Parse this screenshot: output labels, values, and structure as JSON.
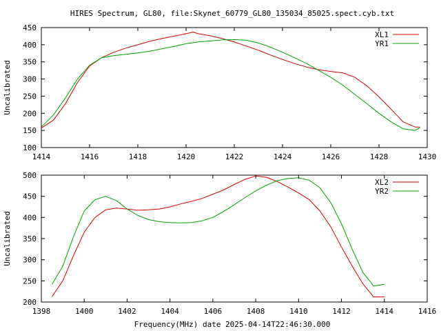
{
  "title": "HIRES Spectrum, GL80, file:Skynet_60779_GL80_135034_85025.spect.cyb.txt",
  "xlabel": "Frequency(MHz) date 2025-04-14T22:46:30.000",
  "chart_data": [
    {
      "type": "line",
      "title": "HIRES Spectrum, GL80, file:Skynet_60779_GL80_135034_85025.spect.cyb.txt",
      "xlabel": "",
      "ylabel": "Uncalibrated",
      "xlim": [
        1414,
        1430
      ],
      "ylim": [
        100,
        450
      ],
      "x_ticks": [
        "1414",
        "1416",
        "1418",
        "1420",
        "1422",
        "1424",
        "1426",
        "1428",
        "1430"
      ],
      "y_ticks": [
        "100",
        "150",
        "200",
        "250",
        "300",
        "350",
        "400",
        "450"
      ],
      "grid": false,
      "legend": "top-right",
      "series": [
        {
          "name": "XL1",
          "color": "#d00000",
          "x": [
            1414.0,
            1414.5,
            1415.0,
            1415.5,
            1416.0,
            1416.5,
            1417.0,
            1417.5,
            1418.0,
            1418.5,
            1419.0,
            1419.5,
            1420.0,
            1420.3,
            1420.5,
            1421.0,
            1421.5,
            1422.0,
            1422.5,
            1423.0,
            1423.5,
            1424.0,
            1424.5,
            1425.0,
            1425.5,
            1426.0,
            1426.5,
            1427.0,
            1427.5,
            1428.0,
            1428.5,
            1429.0,
            1429.5,
            1429.7
          ],
          "values": [
            157,
            180,
            228,
            290,
            338,
            362,
            378,
            390,
            400,
            410,
            418,
            425,
            432,
            437,
            432,
            426,
            418,
            408,
            396,
            384,
            370,
            357,
            345,
            335,
            327,
            322,
            318,
            305,
            280,
            248,
            212,
            175,
            160,
            160
          ]
        },
        {
          "name": "YR1",
          "color": "#00a000",
          "x": [
            1414.0,
            1414.5,
            1415.0,
            1415.5,
            1416.0,
            1416.5,
            1417.0,
            1417.5,
            1418.0,
            1418.5,
            1419.0,
            1419.5,
            1420.0,
            1420.5,
            1421.0,
            1421.5,
            1422.0,
            1422.5,
            1423.0,
            1423.5,
            1424.0,
            1424.5,
            1425.0,
            1425.5,
            1426.0,
            1426.5,
            1427.0,
            1427.5,
            1428.0,
            1428.5,
            1429.0,
            1429.5,
            1429.7
          ],
          "values": [
            160,
            195,
            245,
            300,
            340,
            362,
            368,
            372,
            376,
            381,
            388,
            395,
            403,
            408,
            411,
            414,
            415,
            413,
            405,
            393,
            378,
            362,
            345,
            325,
            305,
            282,
            255,
            228,
            200,
            175,
            155,
            150,
            158
          ]
        }
      ]
    },
    {
      "type": "line",
      "title": "",
      "xlabel": "Frequency(MHz) date 2025-04-14T22:46:30.000",
      "ylabel": "Uncalibrated",
      "xlim": [
        1398,
        1416
      ],
      "ylim": [
        200,
        500
      ],
      "x_ticks": [
        "1398",
        "1400",
        "1402",
        "1404",
        "1406",
        "1408",
        "1410",
        "1412",
        "1414",
        "1416"
      ],
      "y_ticks": [
        "200",
        "250",
        "300",
        "350",
        "400",
        "450",
        "500"
      ],
      "grid": false,
      "legend": "top-right",
      "series": [
        {
          "name": "XL2",
          "color": "#d00000",
          "x": [
            1398.5,
            1399.0,
            1399.5,
            1400.0,
            1400.5,
            1401.0,
            1401.5,
            1402.0,
            1402.5,
            1403.0,
            1403.5,
            1404.0,
            1404.5,
            1405.0,
            1405.5,
            1406.0,
            1406.5,
            1407.0,
            1407.5,
            1408.0,
            1408.5,
            1409.0,
            1409.5,
            1410.0,
            1410.5,
            1411.0,
            1411.5,
            1412.0,
            1412.5,
            1413.0,
            1413.5,
            1414.0
          ],
          "values": [
            213,
            250,
            310,
            365,
            400,
            418,
            422,
            420,
            417,
            418,
            420,
            425,
            432,
            438,
            445,
            455,
            465,
            478,
            490,
            498,
            495,
            485,
            472,
            458,
            442,
            415,
            378,
            330,
            285,
            243,
            212,
            212
          ]
        },
        {
          "name": "YR2",
          "color": "#00a000",
          "x": [
            1398.5,
            1399.0,
            1399.5,
            1400.0,
            1400.5,
            1401.0,
            1401.5,
            1402.0,
            1402.5,
            1403.0,
            1403.5,
            1404.0,
            1404.5,
            1405.0,
            1405.5,
            1406.0,
            1406.5,
            1407.0,
            1407.5,
            1408.0,
            1408.5,
            1409.0,
            1409.5,
            1410.0,
            1410.5,
            1411.0,
            1411.5,
            1412.0,
            1412.5,
            1413.0,
            1413.5,
            1414.0
          ],
          "values": [
            242,
            285,
            355,
            415,
            442,
            450,
            440,
            420,
            405,
            395,
            390,
            388,
            387,
            388,
            392,
            400,
            414,
            430,
            447,
            463,
            476,
            487,
            492,
            494,
            488,
            470,
            435,
            385,
            325,
            270,
            238,
            242
          ]
        }
      ]
    }
  ]
}
